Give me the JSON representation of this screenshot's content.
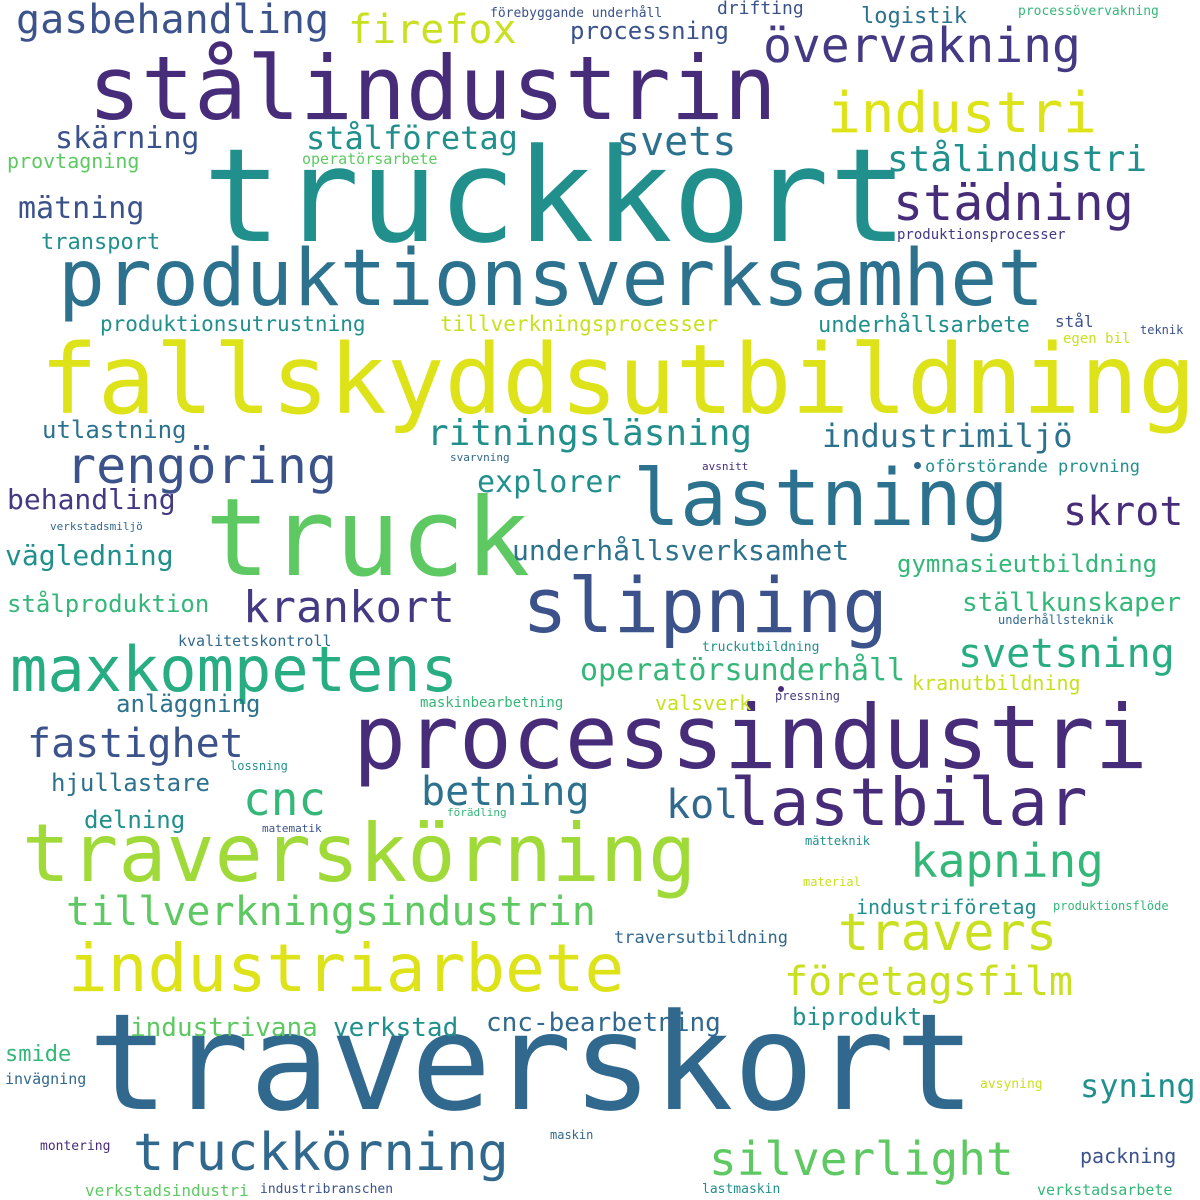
{
  "palette": {
    "dark_purple": "#472c7a",
    "purple": "#443983",
    "indigo": "#3b528b",
    "blue": "#31688e",
    "teal_blue": "#2c728e",
    "teal": "#21908d",
    "sea_green": "#27ad81",
    "green": "#35b779",
    "light_green": "#5ec962",
    "lime": "#a0da39",
    "yellow_green": "#c8e020",
    "yellow": "#dde318"
  },
  "words": [
    {
      "text": "traverskort",
      "color": "#31688e"
    },
    {
      "text": "truckkort",
      "color": "#21908d"
    },
    {
      "text": "fallskyddsutbildning",
      "color": "#dde318"
    },
    {
      "text": "truck",
      "color": "#5ec962"
    },
    {
      "text": "produktionsverksamhet",
      "color": "#2c728e"
    },
    {
      "text": "stålindustrin",
      "color": "#472c7a"
    },
    {
      "text": "processindustri",
      "color": "#472c7a"
    },
    {
      "text": "lastning",
      "color": "#2c728e"
    },
    {
      "text": "traverskörning",
      "color": "#a0da39"
    },
    {
      "text": "industriarbete",
      "color": "#dde318"
    },
    {
      "text": "slipning",
      "color": "#3b528b"
    },
    {
      "text": "maxkompetens",
      "color": "#27ad81"
    },
    {
      "text": "lastbilar",
      "color": "#472c7a"
    },
    {
      "text": "övervakning",
      "color": "#443983"
    },
    {
      "text": "industri",
      "color": "#dde318"
    },
    {
      "text": "truckkörning",
      "color": "#31688e"
    },
    {
      "text": "rengöring",
      "color": "#3b528b"
    },
    {
      "text": "städning",
      "color": "#472c7a"
    },
    {
      "text": "travers",
      "color": "#c8e020"
    },
    {
      "text": "silverlight",
      "color": "#5ec962"
    },
    {
      "text": "kapning",
      "color": "#35b779"
    },
    {
      "text": "företagsfilm",
      "color": "#c8e020"
    },
    {
      "text": "tillverkningsindustrin",
      "color": "#5ec962"
    },
    {
      "text": "cnc",
      "color": "#35b779"
    },
    {
      "text": "krankort",
      "color": "#443983"
    },
    {
      "text": "fastighet",
      "color": "#3b528b"
    },
    {
      "text": "gasbehandling",
      "color": "#3b528b"
    },
    {
      "text": "firefox",
      "color": "#c8e020"
    },
    {
      "text": "svetsning",
      "color": "#27ad81"
    },
    {
      "text": "ritningsläsning",
      "color": "#21908d"
    },
    {
      "text": "betning",
      "color": "#2c728e"
    },
    {
      "text": "stålindustri",
      "color": "#21908d"
    },
    {
      "text": "svets",
      "color": "#2c728e"
    },
    {
      "text": "skrot",
      "color": "#472c7a"
    },
    {
      "text": "kol",
      "color": "#31688e"
    },
    {
      "text": "industrimiljö",
      "color": "#2c728e"
    },
    {
      "text": "stålföretag",
      "color": "#21908d"
    },
    {
      "text": "operatörsunderhåll",
      "color": "#35b779"
    },
    {
      "text": "underhållsverksamhet",
      "color": "#2c728e"
    },
    {
      "text": "explorer",
      "color": "#21908d"
    },
    {
      "text": "syning",
      "color": "#21908d"
    },
    {
      "text": "cnc-bearbetning",
      "color": "#31688e"
    },
    {
      "text": "verkstad",
      "color": "#21908d"
    },
    {
      "text": "industrivana",
      "color": "#5ec962"
    },
    {
      "text": "skärning",
      "color": "#3b528b"
    },
    {
      "text": "mätning",
      "color": "#3b528b"
    },
    {
      "text": "vägledning",
      "color": "#21908d"
    },
    {
      "text": "behandling",
      "color": "#443983"
    },
    {
      "text": "ställkunskaper",
      "color": "#35b779"
    },
    {
      "text": "gymnasieutbildning",
      "color": "#35b779"
    },
    {
      "text": "biprodukt",
      "color": "#21908d"
    },
    {
      "text": "processning",
      "color": "#3b528b"
    },
    {
      "text": "utlastning",
      "color": "#2c728e"
    },
    {
      "text": "stålproduktion",
      "color": "#35b779"
    },
    {
      "text": "anläggning",
      "color": "#2c728e"
    },
    {
      "text": "hjullastare",
      "color": "#2c728e"
    },
    {
      "text": "delning",
      "color": "#21908d"
    },
    {
      "text": "logistik",
      "color": "#2c728e"
    },
    {
      "text": "underhållsarbete",
      "color": "#21908d"
    },
    {
      "text": "industriföretag",
      "color": "#21908d"
    },
    {
      "text": "smide",
      "color": "#35b779"
    },
    {
      "text": "packning",
      "color": "#3b528b"
    },
    {
      "text": "transport",
      "color": "#21908d"
    },
    {
      "text": "produktionsutrustning",
      "color": "#21908d"
    },
    {
      "text": "tillverkningsprocesser",
      "color": "#c8e020"
    },
    {
      "text": "kranutbildning",
      "color": "#c8e020"
    },
    {
      "text": "valsverk",
      "color": "#c8e020"
    },
    {
      "text": "oförstörande provning",
      "color": "#21908d"
    },
    {
      "text": "provtagning",
      "color": "#5ec962"
    },
    {
      "text": "drifting",
      "color": "#3b528b"
    },
    {
      "text": "traversutbildning",
      "color": "#31688e"
    },
    {
      "text": "verkstadsindustri",
      "color": "#5ec962"
    },
    {
      "text": "verkstadsarbete",
      "color": "#35b779"
    },
    {
      "text": "kvalitetskontroll",
      "color": "#31688e"
    },
    {
      "text": "operatörsarbete",
      "color": "#5ec962"
    },
    {
      "text": "produktionsprocesser",
      "color": "#443983"
    },
    {
      "text": "förebyggande underhåll",
      "color": "#3b528b"
    },
    {
      "text": "processövervakning",
      "color": "#35b779"
    },
    {
      "text": "maskinbearbetning",
      "color": "#35b779"
    },
    {
      "text": "invägning",
      "color": "#31688e"
    },
    {
      "text": "montering",
      "color": "#472c7a"
    },
    {
      "text": "industribranschen",
      "color": "#3b528b"
    },
    {
      "text": "lastmaskin",
      "color": "#21908d"
    },
    {
      "text": "truckutbildning",
      "color": "#21908d"
    },
    {
      "text": "underhållsteknik",
      "color": "#31688e"
    },
    {
      "text": "teknik",
      "color": "#3b528b"
    },
    {
      "text": "stål",
      "color": "#3b528b"
    },
    {
      "text": "egen bil",
      "color": "#c8e020"
    },
    {
      "text": "svarvning",
      "color": "#31688e"
    },
    {
      "text": "avsnitt",
      "color": "#472c7a"
    },
    {
      "text": "verkstadsmiljö",
      "color": "#31688e"
    },
    {
      "text": "pressning",
      "color": "#443983"
    },
    {
      "text": "lossning",
      "color": "#21908d"
    },
    {
      "text": "matematik",
      "color": "#3b528b"
    },
    {
      "text": "förädling",
      "color": "#35b779"
    },
    {
      "text": "mätteknik",
      "color": "#21908d"
    },
    {
      "text": "material",
      "color": "#c8e020"
    },
    {
      "text": "produktionsflöde",
      "color": "#35b779"
    },
    {
      "text": "avsyning",
      "color": "#c8e020"
    },
    {
      "text": "maskin",
      "color": "#31688e"
    }
  ]
}
